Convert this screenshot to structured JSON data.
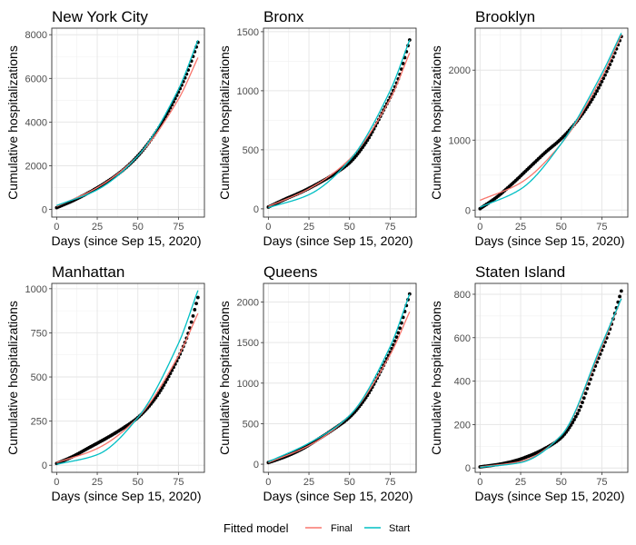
{
  "xlabel": "Days (since Sep 15, 2020)",
  "ylabel": "Cumulative hospitalizations",
  "legend": {
    "title": "Fitted model",
    "items": [
      {
        "label": "Final",
        "color": "#F8766D"
      },
      {
        "label": "Start",
        "color": "#00BFC4"
      }
    ]
  },
  "chart_data": [
    {
      "title": "New York City",
      "type": "scatter",
      "xlim": [
        -3,
        91
      ],
      "ylim": [
        -350,
        8300
      ],
      "xticks": [
        0,
        25,
        50,
        75
      ],
      "yticks": [
        0,
        2000,
        4000,
        6000,
        8000
      ],
      "x_end": 87,
      "observed": [
        [
          0,
          80
        ],
        [
          10,
          400
        ],
        [
          20,
          780
        ],
        [
          30,
          1220
        ],
        [
          40,
          1750
        ],
        [
          50,
          2450
        ],
        [
          60,
          3400
        ],
        [
          70,
          4650
        ],
        [
          80,
          6200
        ],
        [
          87,
          7650
        ]
      ],
      "series": [
        {
          "name": "Final",
          "values": [
            [
              0,
              140
            ],
            [
              25,
              1000
            ],
            [
              50,
              2450
            ],
            [
              75,
              5050
            ],
            [
              87,
              6950
            ]
          ]
        },
        {
          "name": "Start",
          "values": [
            [
              0,
              180
            ],
            [
              25,
              900
            ],
            [
              50,
              2450
            ],
            [
              75,
              5500
            ],
            [
              87,
              7750
            ]
          ]
        }
      ]
    },
    {
      "title": "Bronx",
      "type": "scatter",
      "xlim": [
        -3,
        91
      ],
      "ylim": [
        -70,
        1530
      ],
      "xticks": [
        0,
        25,
        50,
        75
      ],
      "yticks": [
        0,
        500,
        1000,
        1500
      ],
      "x_end": 87,
      "observed": [
        [
          0,
          15
        ],
        [
          10,
          80
        ],
        [
          20,
          140
        ],
        [
          30,
          210
        ],
        [
          40,
          290
        ],
        [
          50,
          390
        ],
        [
          60,
          560
        ],
        [
          70,
          810
        ],
        [
          80,
          1100
        ],
        [
          87,
          1430
        ]
      ],
      "series": [
        {
          "name": "Final",
          "values": [
            [
              0,
              20
            ],
            [
              25,
              170
            ],
            [
              50,
              420
            ],
            [
              75,
              930
            ],
            [
              87,
              1320
            ]
          ]
        },
        {
          "name": "Start",
          "values": [
            [
              0,
              10
            ],
            [
              25,
              120
            ],
            [
              50,
              410
            ],
            [
              75,
              1000
            ],
            [
              87,
              1430
            ]
          ]
        }
      ]
    },
    {
      "title": "Brooklyn",
      "type": "scatter",
      "xlim": [
        -3,
        91
      ],
      "ylim": [
        -100,
        2600
      ],
      "xticks": [
        0,
        25,
        50,
        75
      ],
      "yticks": [
        0,
        1000,
        2000
      ],
      "x_end": 87,
      "observed": [
        [
          0,
          20
        ],
        [
          10,
          180
        ],
        [
          20,
          380
        ],
        [
          30,
          600
        ],
        [
          40,
          820
        ],
        [
          50,
          1020
        ],
        [
          60,
          1280
        ],
        [
          70,
          1620
        ],
        [
          80,
          2080
        ],
        [
          87,
          2480
        ]
      ],
      "series": [
        {
          "name": "Final",
          "values": [
            [
              0,
              140
            ],
            [
              25,
              390
            ],
            [
              50,
              950
            ],
            [
              75,
              1900
            ],
            [
              87,
              2500
            ]
          ]
        },
        {
          "name": "Start",
          "values": [
            [
              0,
              40
            ],
            [
              25,
              300
            ],
            [
              50,
              950
            ],
            [
              75,
              1950
            ],
            [
              87,
              2530
            ]
          ]
        }
      ]
    },
    {
      "title": "Manhattan",
      "type": "scatter",
      "xlim": [
        -3,
        91
      ],
      "ylim": [
        -40,
        1030
      ],
      "xticks": [
        0,
        25,
        50,
        75
      ],
      "yticks": [
        0,
        250,
        500,
        750,
        1000
      ],
      "x_end": 87,
      "observed": [
        [
          0,
          10
        ],
        [
          10,
          50
        ],
        [
          20,
          100
        ],
        [
          30,
          150
        ],
        [
          40,
          205
        ],
        [
          50,
          270
        ],
        [
          60,
          370
        ],
        [
          70,
          520
        ],
        [
          80,
          720
        ],
        [
          87,
          950
        ]
      ],
      "series": [
        {
          "name": "Final",
          "values": [
            [
              0,
              15
            ],
            [
              25,
              95
            ],
            [
              50,
              270
            ],
            [
              75,
              620
            ],
            [
              87,
              860
            ]
          ]
        },
        {
          "name": "Start",
          "values": [
            [
              0,
              5
            ],
            [
              25,
              60
            ],
            [
              50,
              270
            ],
            [
              75,
              690
            ],
            [
              87,
              990
            ]
          ]
        }
      ]
    },
    {
      "title": "Queens",
      "type": "scatter",
      "xlim": [
        -3,
        91
      ],
      "ylim": [
        -100,
        2230
      ],
      "xticks": [
        0,
        25,
        50,
        75
      ],
      "yticks": [
        0,
        500,
        1000,
        1500,
        2000
      ],
      "x_end": 87,
      "observed": [
        [
          0,
          20
        ],
        [
          10,
          90
        ],
        [
          20,
          180
        ],
        [
          30,
          300
        ],
        [
          40,
          430
        ],
        [
          50,
          580
        ],
        [
          60,
          820
        ],
        [
          70,
          1180
        ],
        [
          80,
          1620
        ],
        [
          87,
          2100
        ]
      ],
      "series": [
        {
          "name": "Final",
          "values": [
            [
              0,
              20
            ],
            [
              25,
              230
            ],
            [
              50,
              600
            ],
            [
              75,
              1350
            ],
            [
              87,
              1880
            ]
          ]
        },
        {
          "name": "Start",
          "values": [
            [
              0,
              30
            ],
            [
              25,
              260
            ],
            [
              50,
              600
            ],
            [
              75,
              1450
            ],
            [
              87,
              2100
            ]
          ]
        }
      ]
    },
    {
      "title": "Staten Island",
      "type": "scatter",
      "xlim": [
        -3,
        91
      ],
      "ylim": [
        -20,
        850
      ],
      "xticks": [
        0,
        25,
        50,
        75
      ],
      "yticks": [
        0,
        200,
        400,
        600,
        800
      ],
      "x_end": 87,
      "observed": [
        [
          0,
          5
        ],
        [
          10,
          15
        ],
        [
          20,
          30
        ],
        [
          30,
          55
        ],
        [
          40,
          90
        ],
        [
          50,
          140
        ],
        [
          60,
          250
        ],
        [
          70,
          450
        ],
        [
          80,
          640
        ],
        [
          87,
          815
        ]
      ],
      "series": [
        {
          "name": "Final",
          "values": [
            [
              0,
              5
            ],
            [
              25,
              30
            ],
            [
              50,
              150
            ],
            [
              75,
              560
            ],
            [
              87,
              780
            ]
          ]
        },
        {
          "name": "Start",
          "values": [
            [
              0,
              3
            ],
            [
              25,
              25
            ],
            [
              50,
              150
            ],
            [
              75,
              570
            ],
            [
              87,
              780
            ]
          ]
        }
      ]
    }
  ]
}
